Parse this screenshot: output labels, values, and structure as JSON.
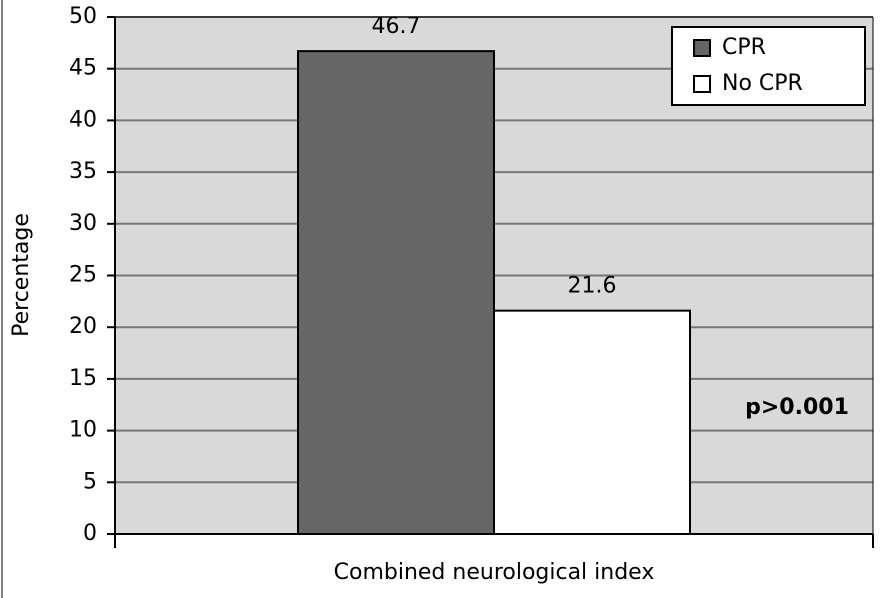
{
  "chart_data": {
    "type": "bar",
    "categories": [
      "Combined neurological index"
    ],
    "series": [
      {
        "name": "CPR",
        "color": "#666666",
        "values": [
          46.7
        ]
      },
      {
        "name": "No CPR",
        "color": "#ffffff",
        "values": [
          21.6
        ]
      }
    ],
    "ylim": [
      0,
      50
    ],
    "yticks": [
      0,
      5,
      10,
      15,
      20,
      25,
      30,
      35,
      40,
      45,
      50
    ],
    "ylabel": "Percentage",
    "annotation": "p>0.001",
    "grid": true,
    "legend": "upper right",
    "background": "#d9d9d9"
  }
}
